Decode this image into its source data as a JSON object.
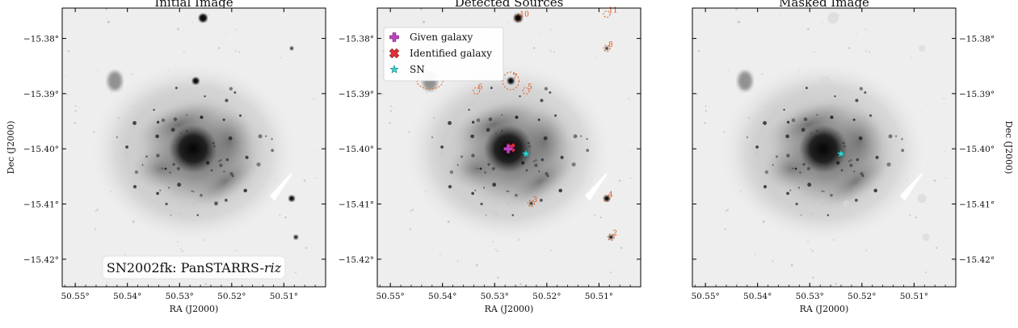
{
  "figure": {
    "panels": [
      {
        "title": "Initial Image",
        "show_detections": false,
        "show_stars": true,
        "show_sn": false,
        "show_overlay_label": true
      },
      {
        "title": "Detected Sources",
        "show_detections": true,
        "show_stars": true,
        "show_sn": true,
        "show_overlay_label": false
      },
      {
        "title": "Masked Image",
        "show_detections": false,
        "show_stars": false,
        "show_sn": true,
        "show_overlay_label": false
      }
    ],
    "axes": {
      "xlabel": "RA (J2000)",
      "ylabel": "Dec (J2000)",
      "x_ticks": [
        "50.55°",
        "50.54°",
        "50.53°",
        "50.52°",
        "50.51°"
      ],
      "y_ticks": [
        "−15.38°",
        "−15.39°",
        "−15.40°",
        "−15.41°",
        "−15.42°"
      ]
    },
    "overlay_label": {
      "prefix": "SN2002fk: PanSTARRS-",
      "italic_suffix": "riz"
    },
    "legend": {
      "placement": "top-left",
      "entries": [
        {
          "label": "Given galaxy",
          "marker": "plus",
          "color": "#c040c0"
        },
        {
          "label": "Identified galaxy",
          "marker": "x",
          "color": "#e0303a"
        },
        {
          "label": "SN",
          "marker": "star",
          "color": "#30d0d0"
        }
      ]
    },
    "sources": [
      {
        "label": "10",
        "ra": 50.5255,
        "dec": -15.3763
      },
      {
        "label": "11",
        "ra": 50.5085,
        "dec": -15.3756
      },
      {
        "label": "8",
        "ra": 50.5085,
        "dec": -15.3818
      },
      {
        "label": "9",
        "ra": 50.5424,
        "dec": -15.3877
      },
      {
        "label": "7",
        "ra": 50.5269,
        "dec": -15.3877
      },
      {
        "label": "6",
        "ra": 50.5335,
        "dec": -15.3895
      },
      {
        "label": "5",
        "ra": 50.524,
        "dec": -15.3895
      },
      {
        "label": "4",
        "ra": 50.5085,
        "dec": -15.409
      },
      {
        "label": "3",
        "ra": 50.523,
        "dec": -15.4099
      },
      {
        "label": "2",
        "ra": 50.5077,
        "dec": -15.416
      }
    ],
    "given_galaxy": {
      "ra": 50.5274,
      "dec": -15.4
    },
    "identified_galaxy": {
      "ra": 50.5269,
      "dec": -15.3998
    },
    "sn": {
      "ra": 50.524,
      "dec": -15.4009
    },
    "colors": {
      "source_label": "#e0501a",
      "ellipse": "#e0601a"
    }
  }
}
